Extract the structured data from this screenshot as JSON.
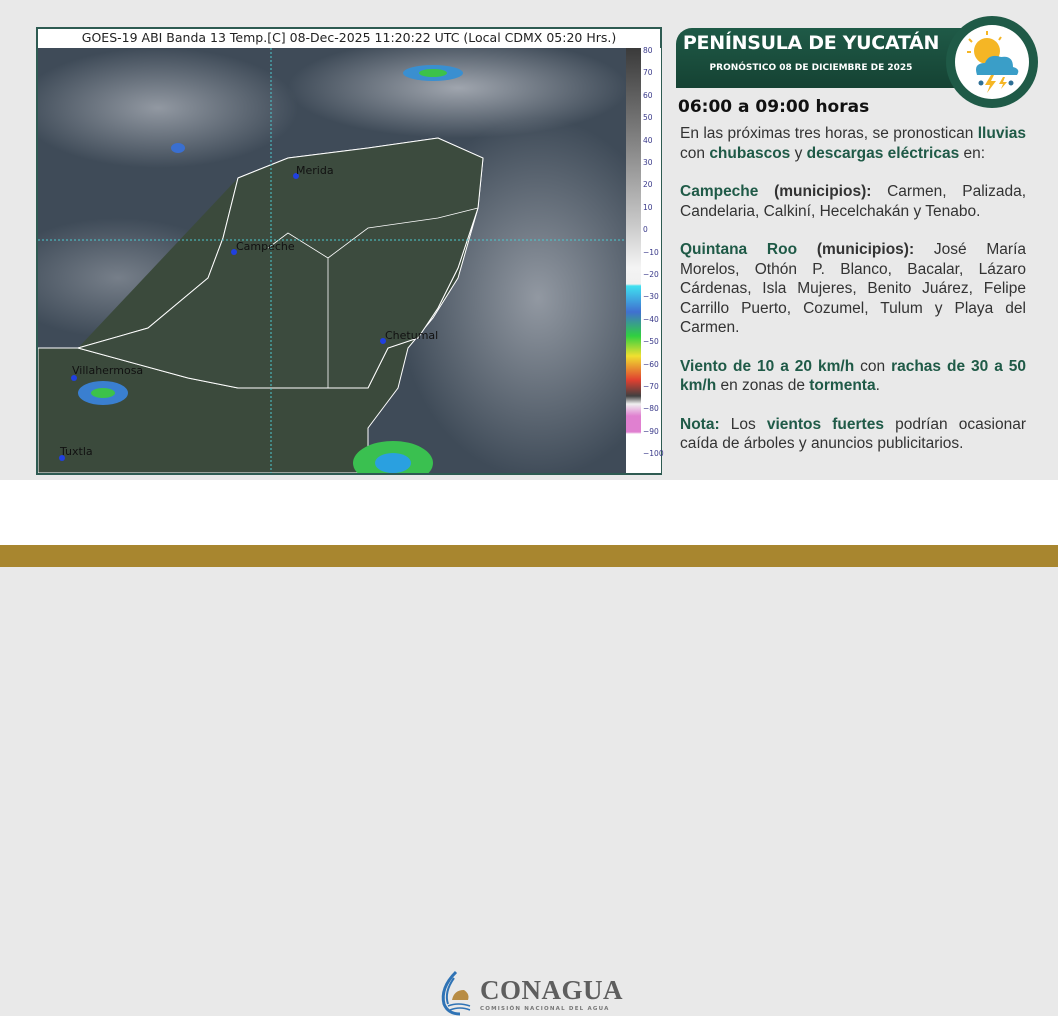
{
  "map": {
    "title": "GOES-19 ABI Banda 13 Temp.[C] 08-Dec-2025 11:20:22 UTC (Local CDMX  05:20 Hrs.)",
    "cities": [
      "Merida",
      "Campeche",
      "Chetumal",
      "Villahermosa",
      "Tuxtla"
    ],
    "colorbar_ticks": [
      "80",
      "70",
      "60",
      "50",
      "40",
      "30",
      "20",
      "10",
      "0",
      "−10",
      "−20",
      "−30",
      "−40",
      "−50",
      "−60",
      "−70",
      "−80",
      "−90",
      "−100"
    ]
  },
  "header": {
    "title": "PENÍNSULA DE YUCATÁN",
    "subtitle": "PRONÓSTICO 08 DE DICIEMBRE DE 2025",
    "icon": "sun-cloud-storm-icon",
    "hours": "06:00 a 09:00 horas"
  },
  "body": {
    "p1": [
      "En las próximas tres horas, se pronostican ",
      "lluvias",
      " con ",
      "chubascos",
      " y ",
      "descargas eléctricas",
      " en:"
    ],
    "p2": [
      "Campeche",
      " (municipios):",
      " Carmen, Palizada, Candelaria, Calkiní, Hecelchakán y Tenabo."
    ],
    "p3": [
      "Quintana Roo",
      " (municipios):",
      " José María Morelos, Othón P. Blanco, Bacalar, Lázaro Cárdenas, Isla Mujeres, Benito Juárez, Felipe Carrillo Puerto, Cozumel, Tulum y Playa del Carmen."
    ],
    "p4": [
      "Viento de 10 a 20 km/h",
      " con ",
      "rachas de 30 a 50 km/h",
      " en zonas de ",
      "tormenta",
      "."
    ],
    "p5": [
      "Nota:",
      " Los ",
      "vientos fuertes",
      " podrían ocasionar caída de árboles y anuncios publicitarios."
    ]
  },
  "footer": {
    "logo_name": "CONAGUA",
    "logo_sub": "COMISIÓN NACIONAL DEL AGUA"
  },
  "colors": {
    "brand_green": "#1f5a47",
    "gold": "#a8862f"
  }
}
